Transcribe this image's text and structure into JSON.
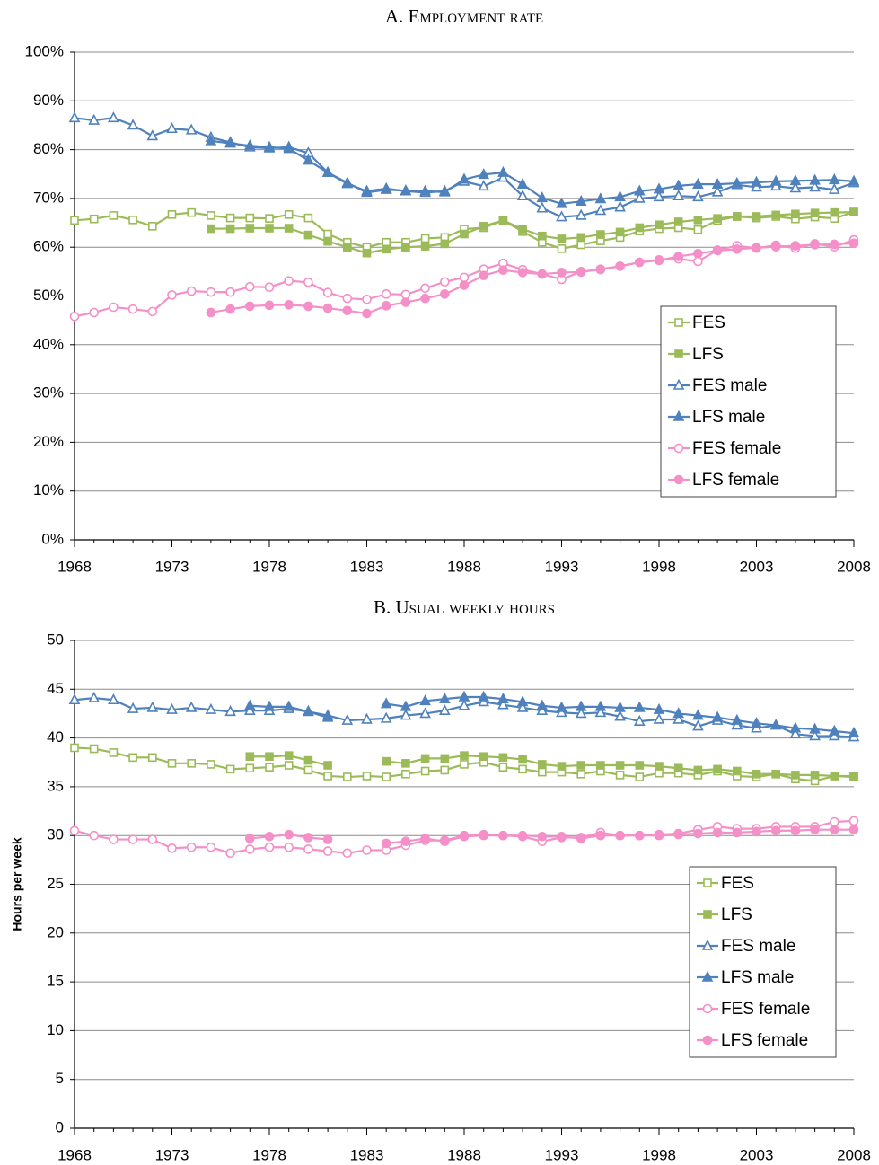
{
  "chart_data": [
    {
      "type": "line",
      "title": "A. Employment rate",
      "x": [
        1968,
        1969,
        1970,
        1971,
        1972,
        1973,
        1974,
        1975,
        1976,
        1977,
        1978,
        1979,
        1980,
        1981,
        1982,
        1983,
        1984,
        1985,
        1986,
        1987,
        1988,
        1989,
        1990,
        1991,
        1992,
        1993,
        1994,
        1995,
        1996,
        1997,
        1998,
        1999,
        2000,
        2001,
        2002,
        2003,
        2004,
        2005,
        2006,
        2007,
        2008
      ],
      "xlim": [
        1968,
        2008
      ],
      "xticks": [
        1968,
        1973,
        1978,
        1983,
        1988,
        1993,
        1998,
        2003,
        2008
      ],
      "ylim": [
        0,
        100
      ],
      "yticks": [
        {
          "value": 0,
          "label": "0%"
        },
        {
          "value": 10,
          "label": "10%"
        },
        {
          "value": 20,
          "label": "20%"
        },
        {
          "value": 30,
          "label": "30%"
        },
        {
          "value": 40,
          "label": "40%"
        },
        {
          "value": 50,
          "label": "50%"
        },
        {
          "value": 60,
          "label": "60%"
        },
        {
          "value": 70,
          "label": "70%"
        },
        {
          "value": 80,
          "label": "80%"
        },
        {
          "value": 90,
          "label": "90%"
        },
        {
          "value": 100,
          "label": "100%"
        }
      ],
      "grid": true,
      "legend": "lower right",
      "series": [
        {
          "name": "FES",
          "color": "#9bbb59",
          "marker": "square",
          "filled": false,
          "values": [
            65.5,
            65.8,
            66.5,
            65.6,
            64.3,
            66.7,
            67.1,
            66.5,
            66,
            66,
            65.9,
            66.7,
            66,
            62.7,
            61,
            60,
            61,
            61,
            61.8,
            62,
            63.7,
            64,
            65.5,
            63.2,
            61,
            59.7,
            60.5,
            61.3,
            62,
            63.3,
            63.8,
            64,
            63.6,
            65.5,
            66.3,
            66,
            66.3,
            65.8,
            66.2,
            65.9,
            67.2
          ]
        },
        {
          "name": "LFS",
          "color": "#9bbb59",
          "marker": "square",
          "filled": true,
          "values": [
            null,
            null,
            null,
            null,
            null,
            null,
            null,
            63.8,
            63.8,
            63.9,
            63.9,
            63.9,
            62.5,
            61.2,
            60,
            58.8,
            59.6,
            60,
            60.2,
            60.7,
            62.7,
            64.3,
            65.5,
            63.7,
            62.3,
            61.7,
            62,
            62.6,
            63.1,
            64,
            64.6,
            65.2,
            65.6,
            65.9,
            66.3,
            66.3,
            66.6,
            66.8,
            67,
            67.1,
            67.2
          ]
        },
        {
          "name": "FES male",
          "color": "#4f81bd",
          "marker": "triangle",
          "filled": false,
          "values": [
            86.5,
            86,
            86.5,
            85,
            82.8,
            84.3,
            84,
            82.5,
            81.5,
            80.5,
            80.3,
            80.5,
            79.3,
            75.3,
            73,
            71.5,
            72,
            71.5,
            71.2,
            71.5,
            73.5,
            72.5,
            74.3,
            70.5,
            68,
            66.2,
            66.5,
            67.5,
            68.2,
            70,
            70.3,
            70.5,
            70.3,
            71.3,
            72.8,
            72.3,
            72.5,
            72.1,
            72.3,
            71.8,
            73.2
          ]
        },
        {
          "name": "LFS male",
          "color": "#4f81bd",
          "marker": "triangle",
          "filled": true,
          "values": [
            null,
            null,
            null,
            null,
            null,
            null,
            null,
            81.8,
            81.3,
            80.8,
            80.5,
            80.2,
            77.8,
            75.3,
            73.2,
            71.2,
            71.8,
            71.6,
            71.5,
            71.3,
            73.9,
            74.9,
            75.3,
            72.9,
            70.1,
            68.9,
            69.4,
            69.9,
            70.3,
            71.5,
            71.9,
            72.6,
            72.9,
            72.9,
            73.1,
            73.3,
            73.5,
            73.6,
            73.7,
            73.8,
            73.5
          ]
        },
        {
          "name": "FES female",
          "color": "#f48fc8",
          "marker": "circle",
          "filled": false,
          "values": [
            45.8,
            46.6,
            47.7,
            47.3,
            46.8,
            50.2,
            51,
            50.8,
            50.8,
            51.9,
            51.8,
            53.1,
            52.8,
            50.7,
            49.5,
            49.3,
            50.4,
            50.3,
            51.6,
            52.9,
            53.8,
            55.5,
            56.7,
            55.4,
            54.5,
            53.4,
            55,
            55.4,
            56.1,
            56.9,
            57.4,
            57.6,
            57.1,
            59.4,
            60.3,
            59.8,
            60.4,
            59.8,
            60.7,
            60.1,
            61.5
          ]
        },
        {
          "name": "LFS female",
          "color": "#f48fc8",
          "marker": "circle",
          "filled": true,
          "values": [
            null,
            null,
            null,
            null,
            null,
            null,
            null,
            46.6,
            47.3,
            47.9,
            48.1,
            48.2,
            47.9,
            47.5,
            47,
            46.4,
            48,
            48.7,
            49.5,
            50.4,
            52.2,
            54.2,
            55.3,
            54.8,
            54.5,
            54.8,
            54.9,
            55.5,
            56.1,
            56.9,
            57.3,
            58.1,
            58.7,
            59.3,
            59.6,
            59.9,
            60.1,
            60.3,
            60.5,
            60.6,
            60.8
          ]
        }
      ]
    },
    {
      "type": "line",
      "title": "B. Usual weekly hours",
      "ylabel": "Hours per week",
      "x": [
        1968,
        1969,
        1970,
        1971,
        1972,
        1973,
        1974,
        1975,
        1976,
        1977,
        1978,
        1979,
        1980,
        1981,
        1982,
        1983,
        1984,
        1985,
        1986,
        1987,
        1988,
        1989,
        1990,
        1991,
        1992,
        1993,
        1994,
        1995,
        1996,
        1997,
        1998,
        1999,
        2000,
        2001,
        2002,
        2003,
        2004,
        2005,
        2006,
        2007,
        2008
      ],
      "xlim": [
        1968,
        2008
      ],
      "xticks": [
        1968,
        1973,
        1978,
        1983,
        1988,
        1993,
        1998,
        2003,
        2008
      ],
      "ylim": [
        0,
        50
      ],
      "yticks": [
        0,
        5,
        10,
        15,
        20,
        25,
        30,
        35,
        40,
        45,
        50
      ],
      "grid": true,
      "legend": "lower right",
      "series": [
        {
          "name": "FES",
          "color": "#9bbb59",
          "marker": "square",
          "filled": false,
          "values": [
            39,
            38.9,
            38.5,
            38,
            38,
            37.4,
            37.4,
            37.3,
            36.8,
            36.9,
            37,
            37.2,
            36.7,
            36.1,
            36,
            36.1,
            36,
            36.3,
            36.6,
            36.7,
            37.3,
            37.5,
            37,
            36.8,
            36.5,
            36.5,
            36.3,
            36.6,
            36.2,
            36,
            36.4,
            36.4,
            36.2,
            36.6,
            36.1,
            36,
            36.3,
            35.8,
            35.6,
            36.1,
            36.1
          ]
        },
        {
          "name": "LFS",
          "color": "#9bbb59",
          "marker": "square",
          "filled": true,
          "values": [
            null,
            null,
            null,
            null,
            null,
            null,
            null,
            null,
            null,
            38.1,
            38.1,
            38.2,
            37.7,
            37.2,
            null,
            null,
            37.6,
            37.4,
            37.9,
            37.9,
            38.2,
            38.1,
            38,
            37.8,
            37.3,
            37.1,
            37.2,
            37.2,
            37.2,
            37.2,
            37.1,
            36.9,
            36.7,
            36.8,
            36.6,
            36.3,
            36.3,
            36.2,
            36.2,
            36.1,
            36
          ]
        },
        {
          "name": "FES male",
          "color": "#4f81bd",
          "marker": "triangle",
          "filled": false,
          "values": [
            43.9,
            44.1,
            43.9,
            43,
            43.1,
            42.9,
            43.1,
            42.9,
            42.7,
            42.8,
            42.8,
            43,
            42.7,
            42.3,
            41.8,
            41.9,
            42,
            42.3,
            42.5,
            42.8,
            43.3,
            43.7,
            43.4,
            43.1,
            42.8,
            42.6,
            42.5,
            42.6,
            42.2,
            41.7,
            41.9,
            41.9,
            41.2,
            41.8,
            41.3,
            41,
            41.3,
            40.4,
            40.2,
            40.2,
            40.1
          ]
        },
        {
          "name": "LFS male",
          "color": "#4f81bd",
          "marker": "triangle",
          "filled": true,
          "values": [
            null,
            null,
            null,
            null,
            null,
            null,
            null,
            null,
            null,
            43.3,
            43.2,
            43.2,
            42.7,
            42.1,
            null,
            null,
            43.5,
            43.2,
            43.8,
            44,
            44.2,
            44.2,
            44,
            43.7,
            43.3,
            43.1,
            43.2,
            43.2,
            43.1,
            43.1,
            42.9,
            42.5,
            42.3,
            42.1,
            41.8,
            41.5,
            41.3,
            41,
            40.9,
            40.7,
            40.5
          ]
        },
        {
          "name": "FES female",
          "color": "#f48fc8",
          "marker": "circle",
          "filled": false,
          "values": [
            30.5,
            30,
            29.6,
            29.6,
            29.6,
            28.7,
            28.8,
            28.8,
            28.2,
            28.6,
            28.8,
            28.8,
            28.6,
            28.4,
            28.2,
            28.5,
            28.5,
            29,
            29.5,
            29.5,
            30,
            30.1,
            30,
            29.9,
            29.4,
            29.8,
            29.8,
            30.3,
            30,
            30,
            30.1,
            30.2,
            30.6,
            30.9,
            30.7,
            30.7,
            30.9,
            30.9,
            30.9,
            31.4,
            31.5
          ]
        },
        {
          "name": "LFS female",
          "color": "#f48fc8",
          "marker": "circle",
          "filled": true,
          "values": [
            null,
            null,
            null,
            null,
            null,
            null,
            null,
            null,
            null,
            29.7,
            29.9,
            30.1,
            29.8,
            29.6,
            null,
            null,
            29.2,
            29.4,
            29.7,
            29.4,
            29.9,
            30,
            30,
            30,
            29.9,
            29.9,
            29.7,
            30,
            30,
            30,
            30,
            30.1,
            30.2,
            30.3,
            30.3,
            30.4,
            30.5,
            30.5,
            30.6,
            30.6,
            30.6
          ]
        }
      ]
    }
  ]
}
